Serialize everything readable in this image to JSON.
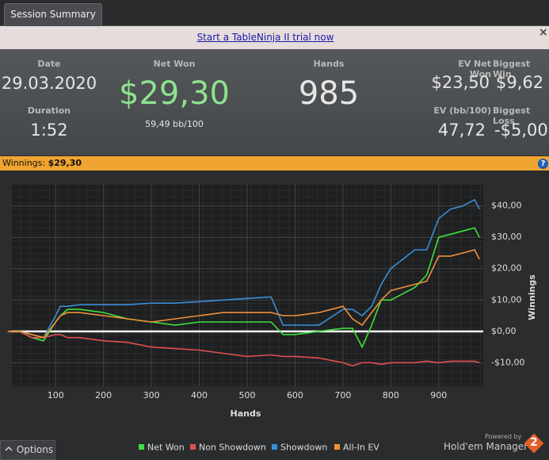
{
  "tab": "Session Summary",
  "banner": {
    "link": "Start a TableNinja II trial now",
    "close": "×"
  },
  "stats": {
    "date": {
      "label": "Date",
      "value": "29.03.2020"
    },
    "duration": {
      "label": "Duration",
      "value": "1:52"
    },
    "net_won": {
      "label": "Net Won",
      "value": "$29,30",
      "sub": "59,49 bb/100"
    },
    "hands": {
      "label": "Hands",
      "value": "985"
    },
    "ev_net_won": {
      "label": "EV Net Won",
      "value": "$23,50"
    },
    "biggest_win": {
      "label": "Biggest Win",
      "value": "$9,62"
    },
    "ev_bb": {
      "label": "EV (bb/100)",
      "value": "47,72"
    },
    "biggest_loss": {
      "label": "Biggest Loss",
      "value": "-$5,00"
    }
  },
  "winnings_bar": {
    "label": "Winnings:",
    "value": "$29,30",
    "help": "?"
  },
  "chart_data": {
    "type": "line",
    "x_label": "Hands",
    "y_label": "Winnings",
    "x": [
      0,
      25,
      50,
      75,
      100,
      110,
      125,
      150,
      200,
      250,
      300,
      350,
      400,
      450,
      500,
      550,
      575,
      600,
      650,
      700,
      720,
      740,
      760,
      780,
      800,
      850,
      875,
      900,
      925,
      950,
      975,
      985
    ],
    "series": [
      {
        "name": "Net Won",
        "color": "#3ee03e",
        "values": [
          0,
          0,
          -2,
          -3,
          3,
          5,
          7,
          7,
          6,
          4,
          3,
          2,
          3,
          3,
          3,
          3,
          -1,
          -1,
          0,
          1,
          1,
          -5,
          2,
          10,
          10,
          14,
          18,
          30,
          31,
          32,
          33,
          30
        ]
      },
      {
        "name": "Non Showdown",
        "color": "#e05050",
        "values": [
          0,
          0,
          -2,
          -2,
          -1,
          -1,
          -2,
          -2,
          -3,
          -3.5,
          -5,
          -5.5,
          -6,
          -7,
          -8,
          -7.5,
          -8,
          -8,
          -8.5,
          -10,
          -11,
          -10,
          -10,
          -10.5,
          -10,
          -10,
          -9.5,
          -10,
          -9.5,
          -9.5,
          -9.5,
          -10
        ]
      },
      {
        "name": "Showdown",
        "color": "#3a8fd8",
        "values": [
          0,
          0,
          -1,
          -2,
          5,
          8,
          8,
          8.5,
          8.5,
          8.5,
          9,
          9,
          9.5,
          10,
          10.5,
          11,
          2,
          2,
          2,
          7,
          7,
          5,
          8,
          15,
          20,
          26,
          26,
          36,
          39,
          40,
          42,
          39
        ]
      },
      {
        "name": "All-In EV",
        "color": "#f0903a",
        "values": [
          0,
          0,
          -1,
          -2,
          3,
          5,
          6,
          6,
          5,
          4,
          3,
          4,
          5,
          6,
          6,
          6,
          5,
          5,
          6,
          8,
          4,
          2,
          6,
          10,
          13,
          15,
          16,
          24,
          24,
          25,
          26,
          23
        ]
      }
    ],
    "xlim": [
      7,
      993
    ],
    "xticks": [
      100,
      200,
      300,
      400,
      500,
      600,
      700,
      800,
      900
    ],
    "ylim": [
      -17.5,
      47
    ],
    "yticks": [
      {
        "value": -10,
        "label": "-$10,00"
      },
      {
        "value": 0,
        "label": "$0,00"
      },
      {
        "value": 10,
        "label": "$10,00"
      },
      {
        "value": 20,
        "label": "$20,00"
      },
      {
        "value": 30,
        "label": "$30,00"
      },
      {
        "value": 40,
        "label": "$40,00"
      }
    ],
    "grid": true
  },
  "footer": {
    "options": "Options",
    "powered": "Powered by",
    "brand": "Hold'em Manager",
    "logo": "2"
  }
}
